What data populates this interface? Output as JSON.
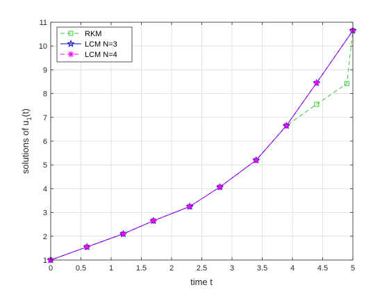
{
  "chart_data": {
    "type": "line",
    "xlabel": "time t",
    "ylabel_main": "solutions of u",
    "ylabel_sub": "1",
    "ylabel_tail": "(t)",
    "xlim": [
      0,
      5
    ],
    "ylim": [
      1,
      11
    ],
    "xticks": [
      0,
      0.5,
      1,
      1.5,
      2,
      2.5,
      3,
      3.5,
      4,
      4.5,
      5
    ],
    "yticks": [
      1,
      2,
      3,
      4,
      5,
      6,
      7,
      8,
      9,
      10,
      11
    ],
    "xtick_labels": [
      "0",
      "0.5",
      "1",
      "1.5",
      "2",
      "2.5",
      "3",
      "3.5",
      "4",
      "4.5",
      "5"
    ],
    "ytick_labels": [
      "1",
      "2",
      "3",
      "4",
      "5",
      "6",
      "7",
      "8",
      "9",
      "10",
      "11"
    ],
    "grid": true,
    "legend_position": "top-left",
    "series": [
      {
        "name": "RKM",
        "color": "#33cc33",
        "line_style": "dashed",
        "marker": "square",
        "x": [
          0,
          0.6,
          1.2,
          1.7,
          2.3,
          2.8,
          3.4,
          3.9,
          4.4,
          4.9,
          5.0
        ],
        "y": [
          1.0,
          1.55,
          2.1,
          2.65,
          3.25,
          4.07,
          5.2,
          6.65,
          7.55,
          8.42,
          10.65
        ]
      },
      {
        "name": "LCM N=3",
        "color": "#0000cc",
        "line_style": "solid",
        "marker": "star",
        "x": [
          0,
          0.6,
          1.2,
          1.7,
          2.3,
          2.8,
          3.4,
          3.9,
          4.4,
          5.0
        ],
        "y": [
          1.0,
          1.55,
          2.1,
          2.65,
          3.25,
          4.07,
          5.2,
          6.65,
          8.45,
          10.65
        ]
      },
      {
        "name": "LCM N=4",
        "color": "#ff00ff",
        "line_style": "dashed",
        "marker": "asterisk",
        "x": [
          0,
          0.6,
          1.2,
          1.7,
          2.3,
          2.8,
          3.4,
          3.9,
          4.4,
          5.0
        ],
        "y": [
          1.0,
          1.55,
          2.1,
          2.65,
          3.25,
          4.07,
          5.2,
          6.65,
          8.45,
          10.65
        ]
      }
    ]
  }
}
